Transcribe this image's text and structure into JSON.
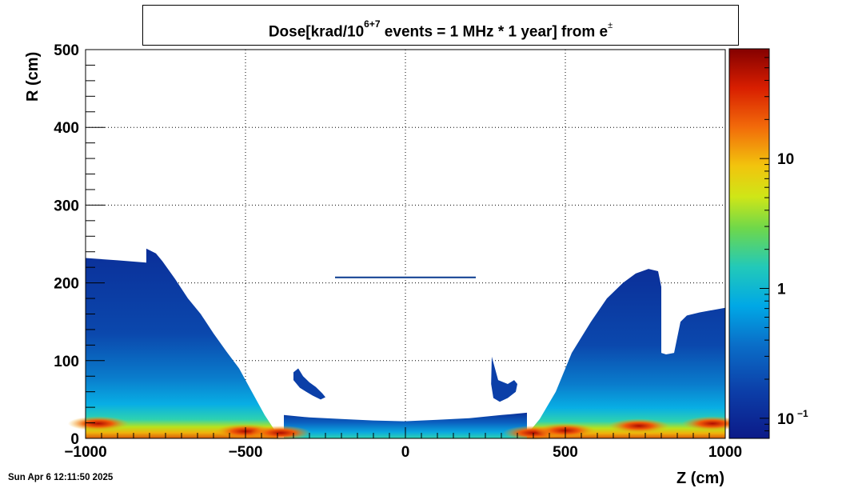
{
  "title": {
    "prefix": "Dose[krad/10",
    "exponent": "6+7",
    "suffix": " events = 1 MHz * 1 year] from e",
    "sup_symbol": "±"
  },
  "timestamp": "Sun Apr  6 12:11:50 2025",
  "colors": {
    "background": "#ffffff",
    "low": "#00107a",
    "mid": "#00b7e8",
    "high": "#8a0000",
    "line": "#0a3b8f"
  },
  "chart_data": {
    "type": "heatmap",
    "xlabel": "Z (cm)",
    "ylabel": "R (cm)",
    "xlim": [
      -1000,
      1000
    ],
    "ylim": [
      0,
      500
    ],
    "x_ticks": [
      {
        "value": -1000,
        "label": "−1000"
      },
      {
        "value": -500,
        "label": "−500"
      },
      {
        "value": 0,
        "label": "0"
      },
      {
        "value": 500,
        "label": "500"
      },
      {
        "value": 1000,
        "label": "1000"
      }
    ],
    "y_ticks": [
      {
        "value": 0,
        "label": "0"
      },
      {
        "value": 100,
        "label": "100"
      },
      {
        "value": 200,
        "label": "200"
      },
      {
        "value": 300,
        "label": "300"
      },
      {
        "value": 400,
        "label": "400"
      },
      {
        "value": 500,
        "label": "500"
      }
    ],
    "grid": true,
    "colorbar": {
      "scale": "log",
      "range": [
        0.07,
        70
      ],
      "ticks": [
        {
          "value": 0.1,
          "label": "10",
          "sup": "−1"
        },
        {
          "value": 1,
          "label": "1",
          "sup": ""
        },
        {
          "value": 10,
          "label": "10",
          "sup": ""
        }
      ]
    },
    "regions": [
      {
        "name": "left-endcap",
        "outline": [
          [
            -1000,
            0
          ],
          [
            -1000,
            232
          ],
          [
            -900,
            229
          ],
          [
            -810,
            226
          ],
          [
            -810,
            244
          ],
          [
            -780,
            238
          ],
          [
            -760,
            228
          ],
          [
            -720,
            205
          ],
          [
            -680,
            180
          ],
          [
            -640,
            160
          ],
          [
            -600,
            135
          ],
          [
            -560,
            112
          ],
          [
            -520,
            90
          ],
          [
            -480,
            60
          ],
          [
            -440,
            30
          ],
          [
            -400,
            5
          ],
          [
            -400,
            0
          ]
        ],
        "base_value": 0.1,
        "peak_value": 40
      },
      {
        "name": "right-endcap",
        "outline": [
          [
            380,
            0
          ],
          [
            380,
            5
          ],
          [
            420,
            25
          ],
          [
            470,
            60
          ],
          [
            520,
            110
          ],
          [
            580,
            150
          ],
          [
            630,
            180
          ],
          [
            680,
            200
          ],
          [
            720,
            212
          ],
          [
            760,
            218
          ],
          [
            790,
            215
          ],
          [
            800,
            195
          ],
          [
            800,
            110
          ],
          [
            815,
            108
          ],
          [
            840,
            110
          ],
          [
            860,
            150
          ],
          [
            880,
            158
          ],
          [
            920,
            162
          ],
          [
            960,
            165
          ],
          [
            1000,
            168
          ],
          [
            1000,
            0
          ]
        ],
        "base_value": 0.1,
        "peak_value": 40
      },
      {
        "name": "central-floor",
        "outline": [
          [
            -380,
            30
          ],
          [
            -300,
            27
          ],
          [
            -200,
            25
          ],
          [
            -100,
            23
          ],
          [
            0,
            22
          ],
          [
            100,
            24
          ],
          [
            200,
            26
          ],
          [
            300,
            30
          ],
          [
            380,
            33
          ],
          [
            380,
            0
          ],
          [
            -380,
            0
          ]
        ],
        "base_value": 0.1,
        "peak_value": 8
      },
      {
        "name": "left-blob",
        "outline": [
          [
            -350,
            85
          ],
          [
            -335,
            90
          ],
          [
            -320,
            80
          ],
          [
            -300,
            72
          ],
          [
            -280,
            66
          ],
          [
            -260,
            58
          ],
          [
            -250,
            53
          ],
          [
            -265,
            50
          ],
          [
            -290,
            55
          ],
          [
            -310,
            60
          ],
          [
            -330,
            65
          ],
          [
            -350,
            75
          ]
        ],
        "base_value": 0.1,
        "peak_value": 0.3
      },
      {
        "name": "right-blob",
        "outline": [
          [
            270,
            105
          ],
          [
            280,
            90
          ],
          [
            290,
            75
          ],
          [
            320,
            70
          ],
          [
            340,
            75
          ],
          [
            350,
            70
          ],
          [
            345,
            60
          ],
          [
            320,
            52
          ],
          [
            295,
            47
          ],
          [
            275,
            52
          ],
          [
            268,
            70
          ]
        ],
        "base_value": 0.1,
        "peak_value": 0.3
      }
    ],
    "lines": [
      {
        "name": "barrel-layer",
        "z_from": -220,
        "z_to": 220,
        "r": 207,
        "value": 0.08
      }
    ],
    "hotspots": [
      {
        "z": -960,
        "r": 15,
        "value": 30
      },
      {
        "z": -500,
        "r": 5,
        "value": 40
      },
      {
        "z": -390,
        "r": 3,
        "value": 40
      },
      {
        "z": 400,
        "r": 3,
        "value": 40
      },
      {
        "z": 500,
        "r": 6,
        "value": 30
      },
      {
        "z": 730,
        "r": 12,
        "value": 40
      },
      {
        "z": 960,
        "r": 15,
        "value": 30
      }
    ]
  }
}
